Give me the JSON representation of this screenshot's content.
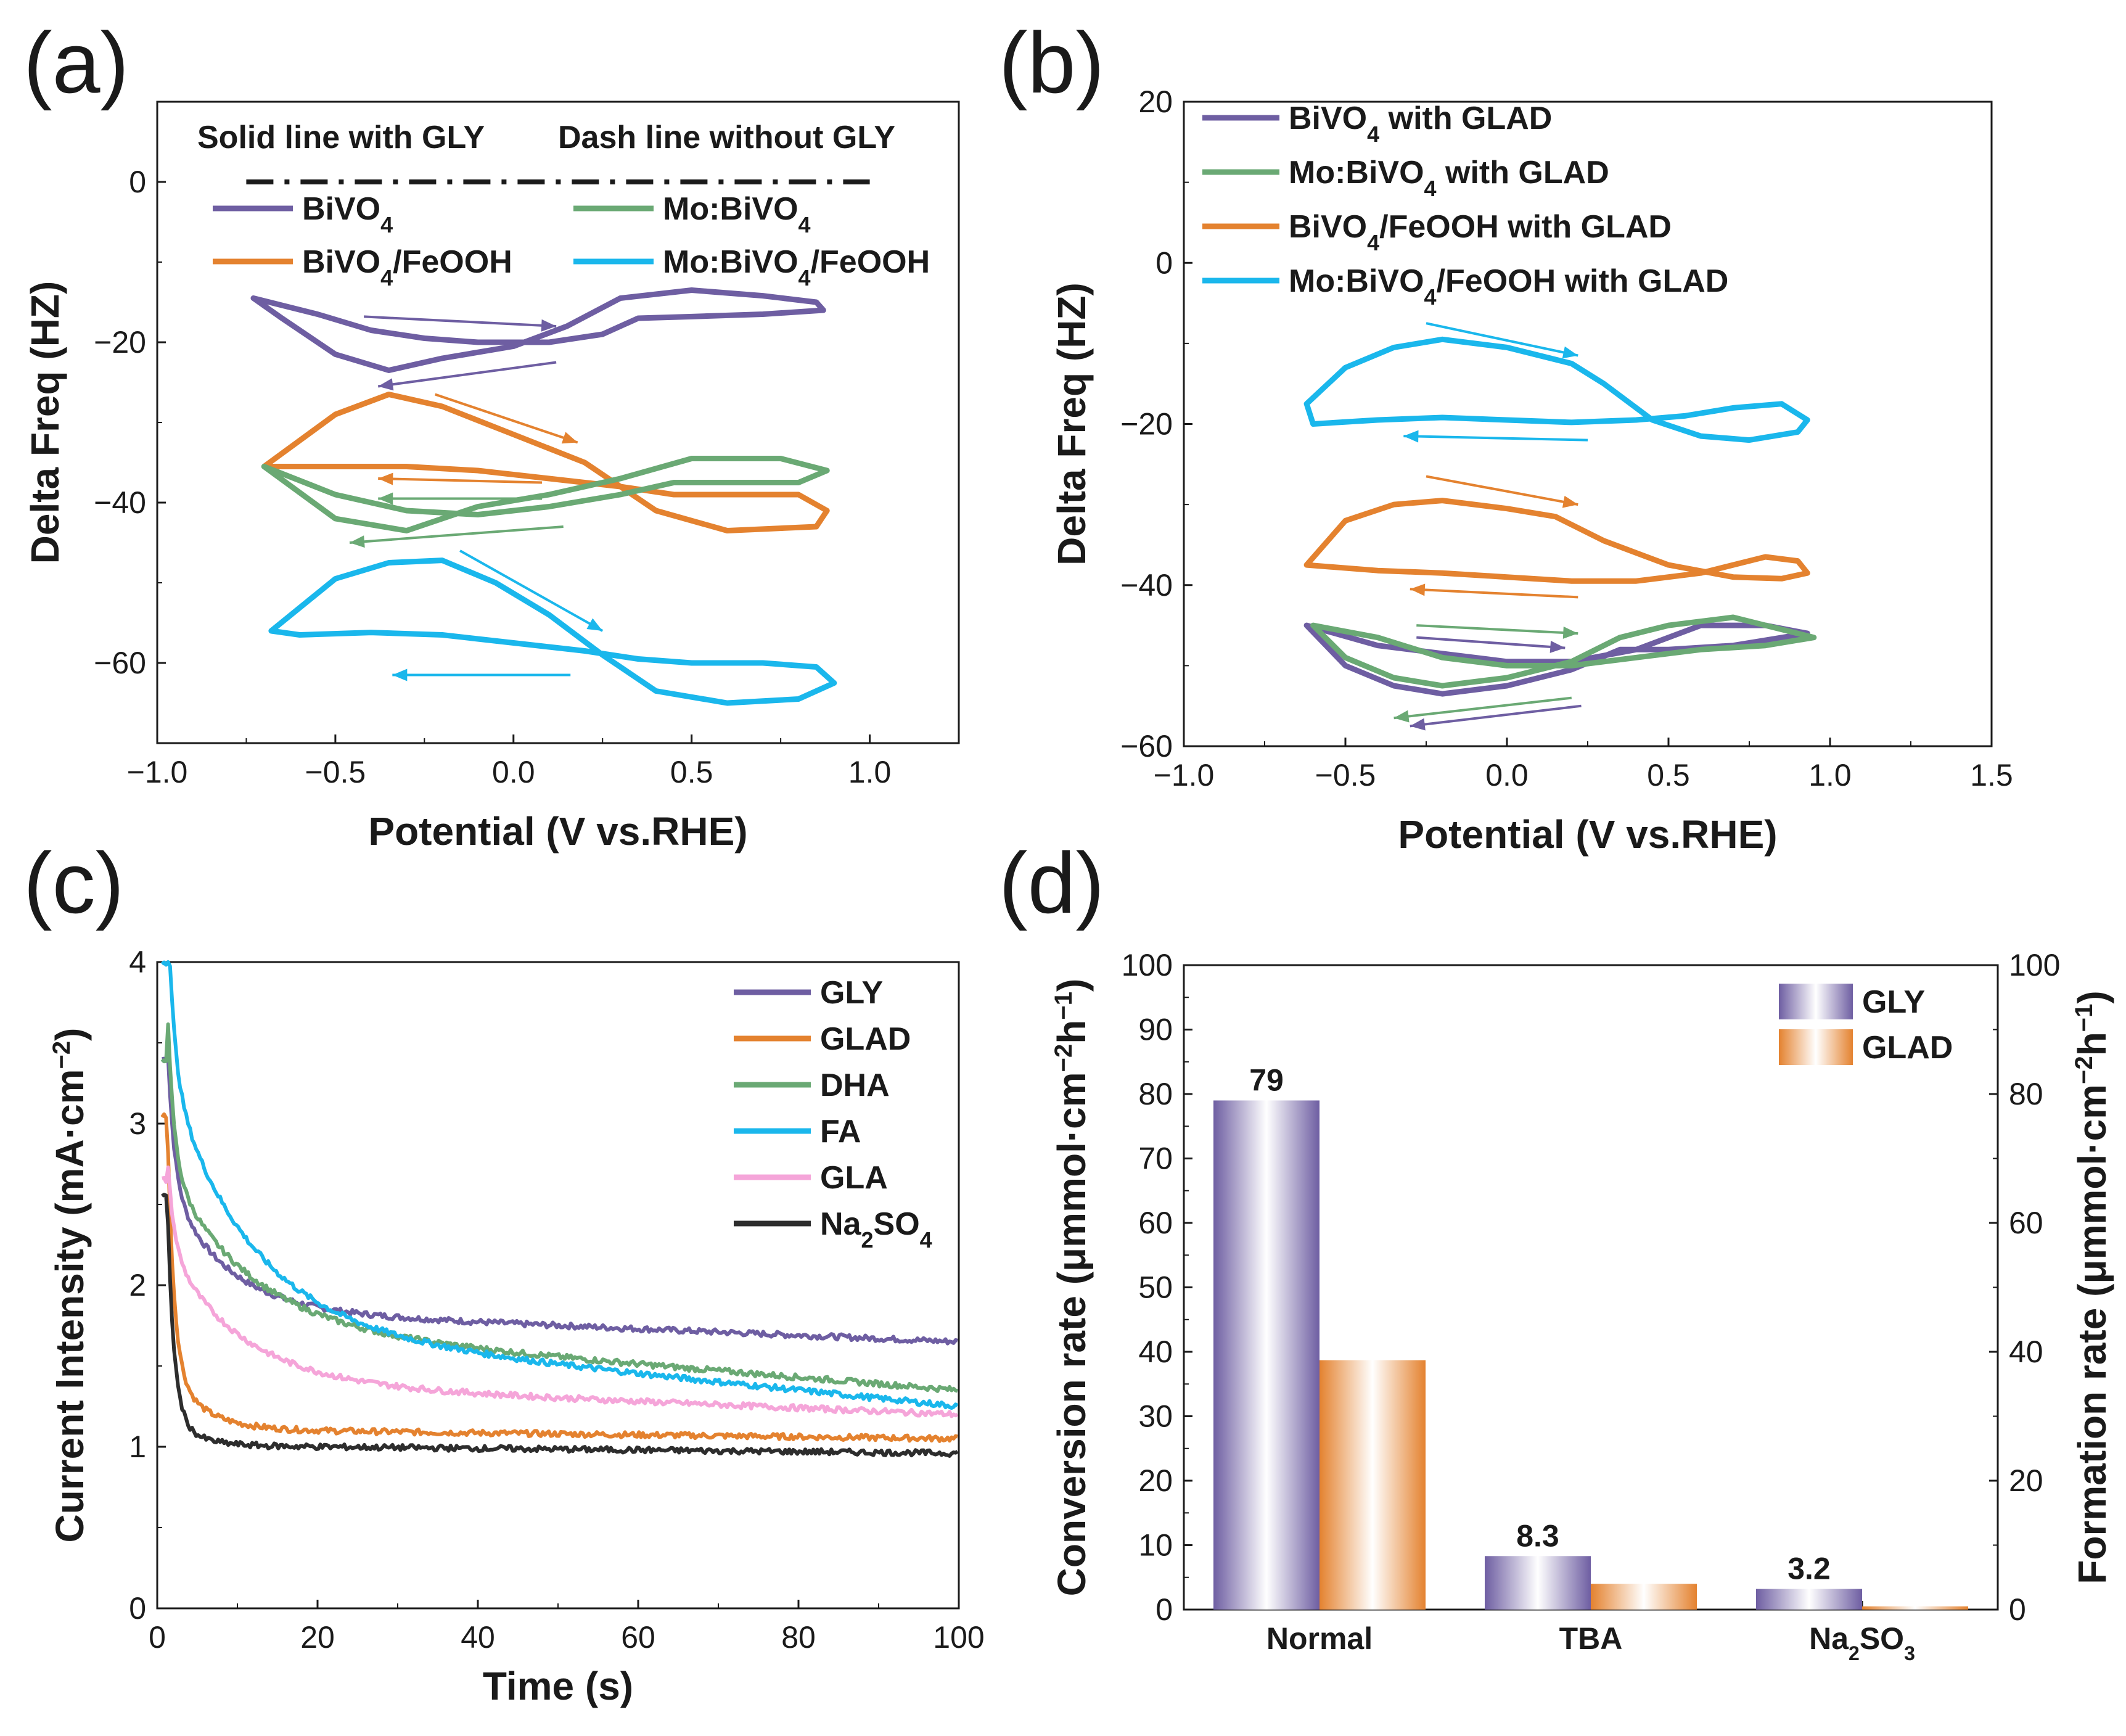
{
  "colors": {
    "purple": "#6e5ea2",
    "green": "#6aa974",
    "orange": "#e4822f",
    "cyan": "#1ab7ec",
    "pink": "#f5a5d9",
    "black": "#2d2d2d"
  },
  "panels": {
    "a": {
      "label": "(a)"
    },
    "b": {
      "label": "(b)"
    },
    "c": {
      "label": "(c)"
    },
    "d": {
      "label": "(d)"
    }
  },
  "chart_data": [
    {
      "id": "a",
      "type": "line",
      "xlabel": "Potential (V vs.RHE)",
      "ylabel": "Delta Freq (HZ)",
      "xlim": [
        -1.0,
        1.25
      ],
      "ylim": [
        -70,
        10
      ],
      "xticks": [
        -1.0,
        -0.5,
        0.0,
        0.5,
        1.0
      ],
      "xtick_labels": [
        "−1.0",
        "−0.5",
        "0.0",
        "0.5",
        "1.0"
      ],
      "yticks": [
        0,
        -20,
        -40,
        -60
      ],
      "ytick_labels": [
        "0",
        "−20",
        "−40",
        "−60"
      ],
      "annotations": {
        "solid": "Solid line with GLY",
        "dash": "Dash line without GLY"
      },
      "legend": [
        {
          "base": "BiVO",
          "sub": "4",
          "tail": "",
          "color": "#6e5ea2"
        },
        {
          "base": "Mo:BiVO",
          "sub": "4",
          "tail": "",
          "color": "#6aa974"
        },
        {
          "base": "BiVO",
          "sub": "4",
          "tail": "/FeOOH",
          "color": "#e4822f"
        },
        {
          "base": "Mo:BiVO",
          "sub": "4",
          "tail": "/FeOOH",
          "color": "#1ab7ec"
        }
      ],
      "series": [
        {
          "name": "BiVO4 without GLY (dash)",
          "color": "#1a1a1a",
          "style": "dashdot",
          "x": [
            -0.75,
            1.0
          ],
          "y": [
            0,
            0
          ]
        },
        {
          "name": "BiVO4",
          "color": "#6e5ea2",
          "x": [
            -0.73,
            -0.55,
            -0.4,
            -0.25,
            -0.1,
            0.1,
            0.25,
            0.35,
            0.5,
            0.7,
            0.87,
            0.85,
            0.7,
            0.5,
            0.3,
            0.15,
            0.0,
            -0.2,
            -0.35,
            -0.5,
            -0.65,
            -0.73
          ],
          "y": [
            -14.5,
            -16.5,
            -18.5,
            -19.5,
            -20,
            -20,
            -19,
            -17,
            -16.8,
            -16.5,
            -16,
            -15,
            -14.2,
            -13.5,
            -14.5,
            -18,
            -20.5,
            -22,
            -23.5,
            -21.5,
            -17,
            -14.5
          ]
        },
        {
          "name": "BiVO4/FeOOH",
          "color": "#e4822f",
          "x": [
            -0.7,
            -0.5,
            -0.35,
            -0.2,
            0.0,
            0.2,
            0.4,
            0.6,
            0.85,
            0.88,
            0.8,
            0.6,
            0.45,
            0.3,
            0.1,
            -0.1,
            -0.3,
            -0.5,
            -0.7
          ],
          "y": [
            -35.5,
            -29,
            -26.5,
            -28,
            -31.5,
            -35,
            -41,
            -43.5,
            -43,
            -41,
            -39,
            -39,
            -39,
            -38,
            -37,
            -36,
            -35.5,
            -35.5,
            -35.5
          ]
        },
        {
          "name": "Mo:BiVO4",
          "color": "#6aa974",
          "x": [
            -0.7,
            -0.5,
            -0.3,
            -0.1,
            0.1,
            0.3,
            0.45,
            0.6,
            0.8,
            0.88,
            0.75,
            0.5,
            0.3,
            0.1,
            -0.1,
            -0.3,
            -0.5,
            -0.7
          ],
          "y": [
            -35.5,
            -39,
            -41,
            -41.5,
            -40.5,
            -39,
            -37.5,
            -37.5,
            -37.5,
            -36,
            -34.5,
            -34.5,
            -37,
            -39,
            -40.5,
            -43.5,
            -42,
            -35.5
          ]
        },
        {
          "name": "Mo:BiVO4/FeOOH",
          "color": "#1ab7ec",
          "x": [
            -0.68,
            -0.5,
            -0.35,
            -0.2,
            -0.05,
            0.1,
            0.25,
            0.4,
            0.6,
            0.8,
            0.9,
            0.85,
            0.7,
            0.5,
            0.35,
            0.2,
            0.0,
            -0.2,
            -0.4,
            -0.6,
            -0.68
          ],
          "y": [
            -56,
            -49.5,
            -47.5,
            -47.2,
            -50,
            -54,
            -59,
            -63.5,
            -65,
            -64.5,
            -62.5,
            -60.5,
            -60,
            -60,
            -59.5,
            -58.5,
            -57.5,
            -56.5,
            -56.2,
            -56.5,
            -56
          ]
        }
      ],
      "arrows": [
        {
          "color": "#6e5ea2",
          "from": [
            -0.42,
            -16.8
          ],
          "to": [
            0.12,
            -18
          ]
        },
        {
          "color": "#6e5ea2",
          "from": [
            0.12,
            -22.5
          ],
          "to": [
            -0.38,
            -25.5
          ]
        },
        {
          "color": "#e4822f",
          "from": [
            -0.22,
            -26.5
          ],
          "to": [
            0.18,
            -32.5
          ]
        },
        {
          "color": "#e4822f",
          "from": [
            0.08,
            -37.5
          ],
          "to": [
            -0.38,
            -37
          ]
        },
        {
          "color": "#6aa974",
          "from": [
            0.08,
            -39.5
          ],
          "to": [
            -0.38,
            -39.5
          ]
        },
        {
          "color": "#6aa974",
          "from": [
            0.14,
            -43
          ],
          "to": [
            -0.46,
            -45
          ]
        },
        {
          "color": "#1ab7ec",
          "from": [
            -0.15,
            -46
          ],
          "to": [
            0.25,
            -56
          ]
        },
        {
          "color": "#1ab7ec",
          "from": [
            0.16,
            -61.5
          ],
          "to": [
            -0.34,
            -61.5
          ]
        }
      ]
    },
    {
      "id": "b",
      "type": "line",
      "xlabel": "Potential (V vs.RHE)",
      "ylabel": "Delta Freq (HZ)",
      "xlim": [
        -1.0,
        1.5
      ],
      "ylim": [
        -60,
        20
      ],
      "xticks": [
        -1.0,
        -0.5,
        0.0,
        0.5,
        1.0,
        1.5
      ],
      "xtick_labels": [
        "−1.0",
        "−0.5",
        "0.0",
        "0.5",
        "1.0",
        "1.5"
      ],
      "yticks": [
        20,
        0,
        -20,
        -40,
        -60
      ],
      "ytick_labels": [
        "20",
        "0",
        "−20",
        "−40",
        "−60"
      ],
      "legend": [
        {
          "base": "BiVO",
          "sub": "4",
          "tail": " with GLAD",
          "color": "#6e5ea2"
        },
        {
          "base": "Mo:BiVO",
          "sub": "4",
          "tail": " with GLAD",
          "color": "#6aa974"
        },
        {
          "base": "BiVO",
          "sub": "4",
          "tail": "/FeOOH with GLAD",
          "color": "#e4822f"
        },
        {
          "base": "Mo:BiVO",
          "sub": "4",
          "tail": "/FeOOH with GLAD",
          "color": "#1ab7ec"
        }
      ],
      "series": [
        {
          "name": "Mo:BiVO4/FeOOH with GLAD",
          "color": "#1ab7ec",
          "x": [
            -0.62,
            -0.5,
            -0.35,
            -0.2,
            0.0,
            0.2,
            0.3,
            0.45,
            0.6,
            0.75,
            0.9,
            0.93,
            0.85,
            0.7,
            0.55,
            0.4,
            0.2,
            0.0,
            -0.2,
            -0.4,
            -0.6,
            -0.62
          ],
          "y": [
            -17.5,
            -13,
            -10.5,
            -9.5,
            -10.5,
            -12.5,
            -15,
            -19.5,
            -21.5,
            -22,
            -21,
            -19.5,
            -17.5,
            -18,
            -19,
            -19.5,
            -19.8,
            -19.5,
            -19.2,
            -19.5,
            -20,
            -17.5
          ]
        },
        {
          "name": "BiVO4/FeOOH with GLAD",
          "color": "#e4822f",
          "x": [
            -0.62,
            -0.5,
            -0.35,
            -0.2,
            0.0,
            0.15,
            0.3,
            0.5,
            0.7,
            0.85,
            0.93,
            0.9,
            0.8,
            0.6,
            0.4,
            0.2,
            0.0,
            -0.2,
            -0.4,
            -0.62
          ],
          "y": [
            -37.5,
            -32,
            -30,
            -29.5,
            -30.5,
            -31.5,
            -34.5,
            -37.5,
            -39,
            -39.2,
            -38.5,
            -37,
            -36.5,
            -38.5,
            -39.5,
            -39.5,
            -39,
            -38.5,
            -38.2,
            -37.5
          ]
        },
        {
          "name": "BiVO4 with GLAD",
          "color": "#6e5ea2",
          "x": [
            -0.62,
            -0.5,
            -0.35,
            -0.2,
            0.0,
            0.2,
            0.35,
            0.5,
            0.7,
            0.93,
            0.8,
            0.6,
            0.4,
            0.2,
            0.0,
            -0.2,
            -0.4,
            -0.62
          ],
          "y": [
            -45,
            -50,
            -52.5,
            -53.5,
            -52.5,
            -50.5,
            -48,
            -48,
            -47.5,
            -46,
            -45,
            -45,
            -48,
            -49.5,
            -49.5,
            -48.5,
            -47.5,
            -45
          ]
        },
        {
          "name": "Mo:BiVO4 with GLAD",
          "color": "#6aa974",
          "x": [
            -0.6,
            -0.5,
            -0.35,
            -0.2,
            0.0,
            0.2,
            0.35,
            0.5,
            0.7,
            0.95,
            0.8,
            0.6,
            0.4,
            0.2,
            0.0,
            -0.2,
            -0.4,
            -0.6
          ],
          "y": [
            -45,
            -49,
            -51.5,
            -52.5,
            -51.5,
            -49.5,
            -46.5,
            -45,
            -44,
            -46.5,
            -47.5,
            -48,
            -49,
            -50,
            -50,
            -49,
            -46.5,
            -45
          ]
        }
      ],
      "arrows": [
        {
          "color": "#1ab7ec",
          "from": [
            -0.25,
            -7.5
          ],
          "to": [
            0.22,
            -11.5
          ]
        },
        {
          "color": "#1ab7ec",
          "from": [
            0.25,
            -22
          ],
          "to": [
            -0.32,
            -21.5
          ]
        },
        {
          "color": "#e4822f",
          "from": [
            -0.25,
            -26.5
          ],
          "to": [
            0.22,
            -30
          ]
        },
        {
          "color": "#e4822f",
          "from": [
            0.22,
            -41.5
          ],
          "to": [
            -0.3,
            -40.5
          ]
        },
        {
          "color": "#6aa974",
          "from": [
            -0.28,
            -45
          ],
          "to": [
            0.22,
            -46
          ]
        },
        {
          "color": "#6e5ea2",
          "from": [
            -0.28,
            -46.5
          ],
          "to": [
            0.18,
            -47.8
          ]
        },
        {
          "color": "#6aa974",
          "from": [
            0.2,
            -54
          ],
          "to": [
            -0.35,
            -56.5
          ]
        },
        {
          "color": "#6e5ea2",
          "from": [
            0.23,
            -55
          ],
          "to": [
            -0.3,
            -57.5
          ]
        }
      ]
    },
    {
      "id": "c",
      "type": "line",
      "xlabel": "Time (s)",
      "ylabel": "Current Intensity (mA·cm",
      "ylabel_sup": "−2",
      "ylabel_tail": ")",
      "xlim": [
        0,
        100
      ],
      "ylim": [
        0,
        4
      ],
      "xticks": [
        0,
        20,
        40,
        60,
        80,
        100
      ],
      "xtick_labels": [
        "0",
        "20",
        "40",
        "60",
        "80",
        "100"
      ],
      "yticks": [
        0,
        1,
        2,
        3,
        4
      ],
      "ytick_labels": [
        "0",
        "1",
        "2",
        "3",
        "4"
      ],
      "legend": [
        {
          "base": "GLY",
          "sub": "",
          "tail": "",
          "color": "#6e5ea2"
        },
        {
          "base": "GLAD",
          "sub": "",
          "tail": "",
          "color": "#e4822f"
        },
        {
          "base": "DHA",
          "sub": "",
          "tail": "",
          "color": "#6aa974"
        },
        {
          "base": "FA",
          "sub": "",
          "tail": "",
          "color": "#1ab7ec"
        },
        {
          "base": "GLA",
          "sub": "",
          "tail": "",
          "color": "#f5a5d9"
        },
        {
          "base": "Na",
          "sub": "2",
          "tail": "SO",
          "sub2": "4",
          "color": "#2d2d2d"
        }
      ],
      "series": [
        {
          "name": "GLY",
          "color": "#6e5ea2",
          "start": 3.4,
          "final": 1.65,
          "amp": 0.8,
          "tau": 7,
          "slope": 0.002
        },
        {
          "name": "GLAD",
          "color": "#e4822f",
          "start": 3.05,
          "final": 1.05,
          "amp": 0.4,
          "tau": 4,
          "slope": 0.0006
        },
        {
          "name": "DHA",
          "color": "#6aa974",
          "start": 3.4,
          "final": 1.35,
          "amp": 1.0,
          "tau": 10,
          "slope": 0.004
        },
        {
          "name": "FA",
          "color": "#1ab7ec",
          "start": 4.0,
          "final": 1.25,
          "amp": 1.6,
          "tau": 10,
          "slope": 0.005
        },
        {
          "name": "GLA",
          "color": "#f5a5d9",
          "start": 2.65,
          "final": 1.2,
          "amp": 0.85,
          "tau": 9,
          "slope": 0.002
        },
        {
          "name": "Na2SO4",
          "color": "#2d2d2d",
          "start": 2.55,
          "final": 0.96,
          "amp": 0.2,
          "tau": 3,
          "slope": 0.0005
        }
      ]
    },
    {
      "id": "d",
      "type": "bar",
      "categories": [
        "Normal",
        "TBA",
        "Na2SO3"
      ],
      "category_labels": [
        {
          "base": "Normal",
          "sub": "",
          "tail": ""
        },
        {
          "base": "TBA",
          "sub": "",
          "tail": ""
        },
        {
          "base": "Na",
          "sub": "2",
          "tail": "SO",
          "sub2": "3"
        }
      ],
      "series": [
        {
          "name": "GLY",
          "color": "#6e5ea2",
          "values": [
            79,
            8.3,
            3.2
          ],
          "data_labels": [
            "79",
            "8.3",
            "3.2"
          ]
        },
        {
          "name": "GLAD",
          "color": "#e4822f",
          "values": [
            38.7,
            4.0,
            0.5
          ]
        }
      ],
      "ylabel_left": "Conversion rate (μmmol·cm",
      "ylabel_right": "Formation rate (μmmol·cm",
      "ylabel_mid": "h",
      "ylabel_sup1": "−2",
      "ylabel_sup2": "−1",
      "ylabel_tail": ")",
      "ylim_left": [
        0,
        100
      ],
      "ylim_right": [
        0,
        100
      ],
      "yticks_left": [
        0,
        10,
        20,
        30,
        40,
        50,
        60,
        70,
        80,
        90,
        100
      ],
      "ytick_labels_left": [
        "0",
        "10",
        "20",
        "30",
        "40",
        "50",
        "60",
        "70",
        "80",
        "90",
        "100"
      ],
      "yticks_right": [
        0,
        20,
        40,
        60,
        80,
        100
      ],
      "ytick_labels_right": [
        "0",
        "20",
        "40",
        "60",
        "80",
        "100"
      ],
      "legend": [
        {
          "base": "GLY",
          "color": "#6e5ea2"
        },
        {
          "base": "GLAD",
          "color": "#e4822f"
        }
      ]
    }
  ]
}
